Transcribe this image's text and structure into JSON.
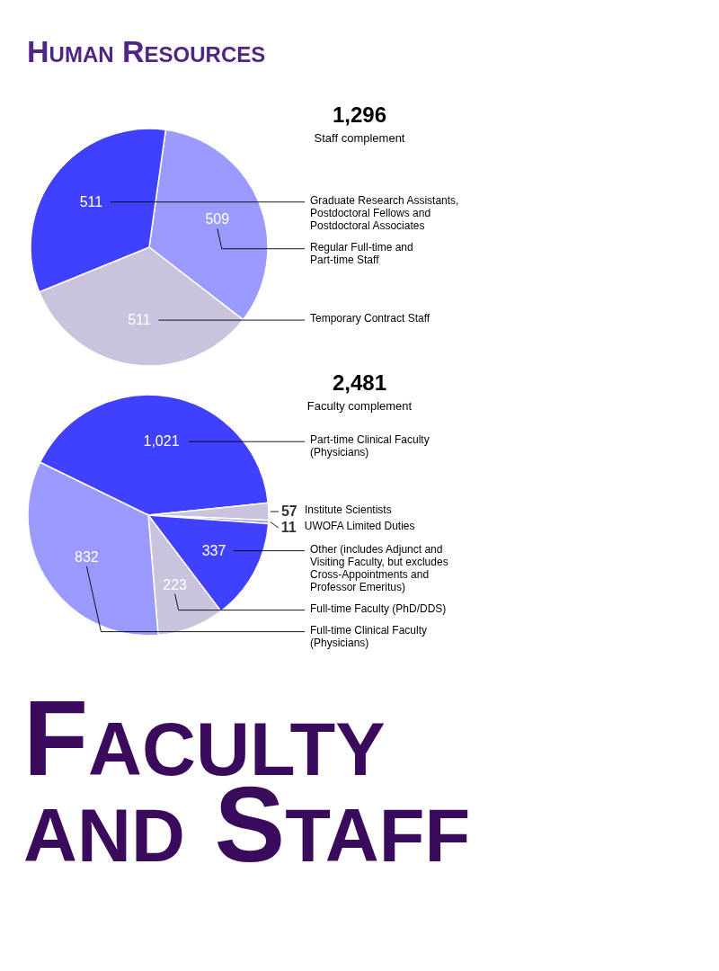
{
  "chart_data": [
    {
      "type": "pie",
      "title": "1,296",
      "subtitle": "Staff complement",
      "annotations": [
        "Human Resources"
      ],
      "data_labels": true,
      "categories": [
        "Regular Full-time and Part-time Staff",
        "Temporary Contract Staff",
        "Graduate Research Assistants, Postdoctoral Fellows and Postdoctoral Associates"
      ],
      "values": [
        509,
        511,
        511
      ],
      "colors": [
        "#9b9bff",
        "#c9c3de",
        "#4040ff"
      ]
    },
    {
      "type": "pie",
      "title": "2,481",
      "subtitle": "Faculty complement",
      "annotations": [
        "Faculty and Staff"
      ],
      "value_labels": [
        "1,021",
        "57",
        "11",
        "337",
        "223",
        "832"
      ],
      "categories": [
        "Part-time Clinical Faculty (Physicians)",
        "Institute Scientists",
        "UWOFA Limited Duties",
        "Other (includes Adjunct and Visiting Faculty, but excludes Cross-Appointments and Professor Emeritus)",
        "Full-time Faculty (PhD/DDS)",
        "Full-time Clinical Faculty (Physicians)"
      ],
      "values": [
        1021,
        57,
        11,
        337,
        223,
        832
      ],
      "colors": [
        "#4040ff",
        "#c9c3de",
        "#9b9bff",
        "#4040ff",
        "#c9c3de",
        "#9b9bff"
      ]
    }
  ]
}
